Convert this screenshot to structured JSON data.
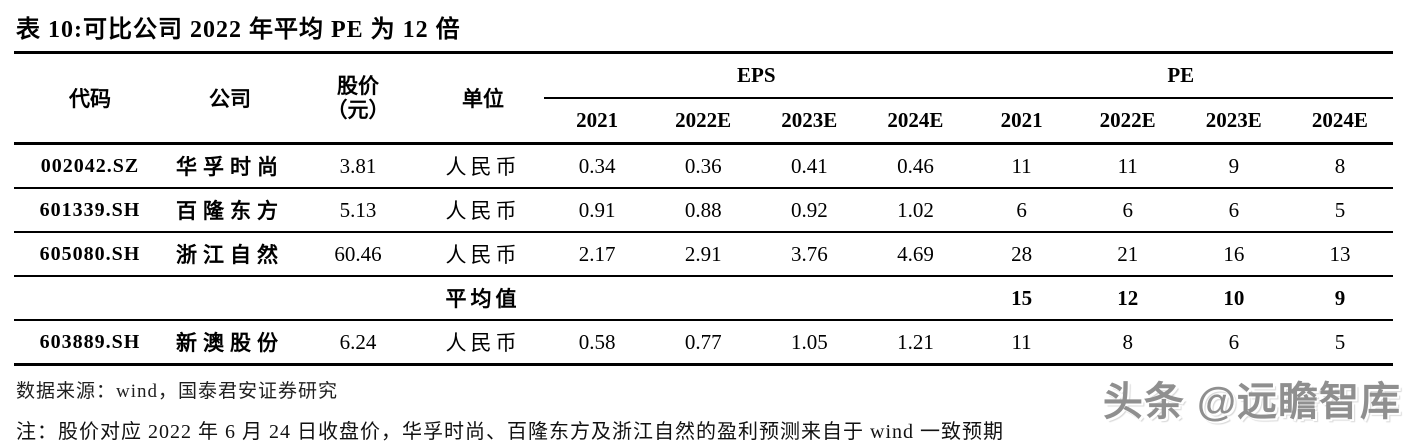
{
  "title": "表 10:可比公司 2022 年平均 PE 为 12 倍",
  "table": {
    "headers": {
      "code": "代码",
      "company": "公司",
      "price_line1": "股价",
      "price_line2": "（元）",
      "unit": "单位",
      "eps_group": "EPS",
      "pe_group": "PE",
      "years": {
        "eps_2021": "2021",
        "eps_2022e": "2022E",
        "eps_2023e": "2023E",
        "eps_2024e": "2024E",
        "pe_2021": "2021",
        "pe_2022e": "2022E",
        "pe_2023e": "2023E",
        "pe_2024e": "2024E"
      }
    },
    "rows": [
      {
        "code": "002042.SZ",
        "company": "华孚时尚",
        "price": "3.81",
        "unit": "人民币",
        "values": [
          "0.34",
          "0.36",
          "0.41",
          "0.46",
          "11",
          "11",
          "9",
          "8"
        ]
      },
      {
        "code": "601339.SH",
        "company": "百隆东方",
        "price": "5.13",
        "unit": "人民币",
        "values": [
          "0.91",
          "0.88",
          "0.92",
          "1.02",
          "6",
          "6",
          "6",
          "5"
        ]
      },
      {
        "code": "605080.SH",
        "company": "浙江自然",
        "price": "60.46",
        "unit": "人民币",
        "values": [
          "2.17",
          "2.91",
          "3.76",
          "4.69",
          "28",
          "21",
          "16",
          "13"
        ]
      },
      {
        "code": "",
        "company": "",
        "price": "",
        "unit": "平均值",
        "values": [
          "",
          "",
          "",
          "",
          "15",
          "12",
          "10",
          "9"
        ]
      },
      {
        "code": "603889.SH",
        "company": "新澳股份",
        "price": "6.24",
        "unit": "人民币",
        "values": [
          "0.58",
          "0.77",
          "1.05",
          "1.21",
          "11",
          "8",
          "6",
          "5"
        ]
      }
    ]
  },
  "footer": {
    "source": "数据来源：wind，国泰君安证券研究",
    "note": "注：股价对应 2022 年 6 月 24 日收盘价，华孚时尚、百隆东方及浙江自然的盈利预测来自于 wind 一致预期"
  },
  "watermark": "头条 @远瞻智库",
  "colors": {
    "text": "#000000",
    "rule": "#000000",
    "footer_text": "#1f1f1f",
    "watermark": "#8f8f8f",
    "background": "#ffffff"
  }
}
